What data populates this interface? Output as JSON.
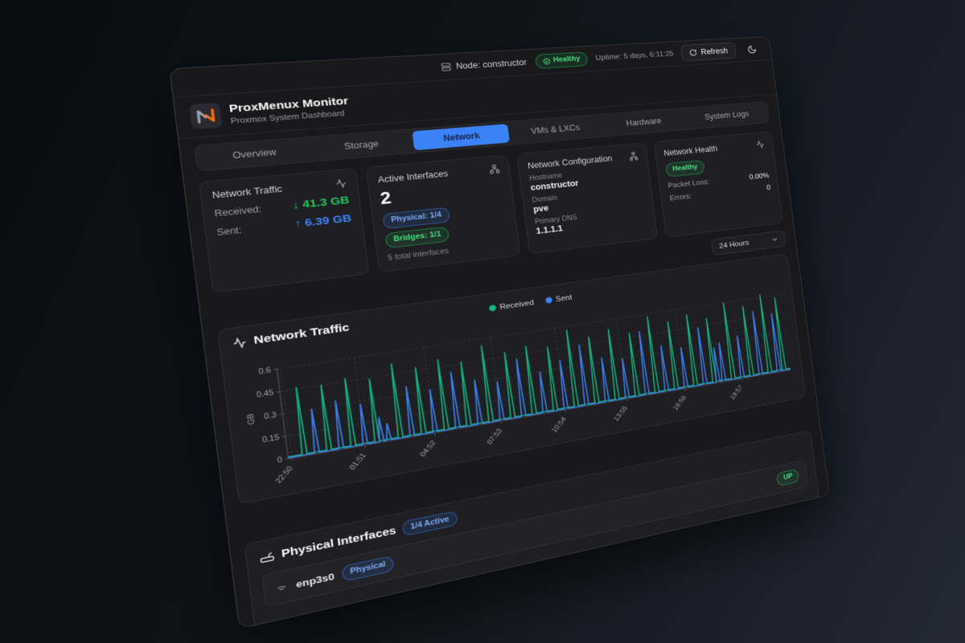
{
  "topbar": {
    "node": "Node: constructor",
    "health_status": "Healthy",
    "uptime": "Uptime: 5 days, 6:11:25",
    "refresh_label": "Refresh"
  },
  "brand": {
    "title": "ProxMenux Monitor",
    "subtitle": "Proxmox System Dashboard"
  },
  "tabs": [
    {
      "label": "Overview",
      "active": false
    },
    {
      "label": "Storage",
      "active": false
    },
    {
      "label": "Network",
      "active": true
    },
    {
      "label": "VMs & LXCs",
      "active": false
    },
    {
      "label": "Hardware",
      "active": false
    },
    {
      "label": "System Logs",
      "active": false
    }
  ],
  "cards": {
    "traffic": {
      "title": "Network Traffic",
      "rows": [
        {
          "label": "Received:",
          "value": "↓ 41.3 GB",
          "color": "#22c55e"
        },
        {
          "label": "Sent:",
          "value": "↑ 6.39 GB",
          "color": "#3b82f6"
        }
      ]
    },
    "interfaces": {
      "title": "Active Interfaces",
      "count": "2",
      "badges": [
        {
          "label": "Physical: 1/4",
          "variant": "blue"
        },
        {
          "label": "Bridges: 1/1",
          "variant": "green"
        }
      ],
      "note": "5 total interfaces"
    },
    "config": {
      "title": "Network Configuration",
      "fields": [
        {
          "label": "Hostname",
          "value": "constructor"
        },
        {
          "label": "Domain",
          "value": "pve"
        },
        {
          "label": "Primary DNS",
          "value": "1.1.1.1"
        }
      ]
    },
    "health": {
      "title": "Network Health",
      "status": "Healthy",
      "rows": [
        {
          "label": "Packet Loss:",
          "value": "0.00%"
        },
        {
          "label": "Errors:",
          "value": "0"
        }
      ]
    }
  },
  "time_range": {
    "selected": "24 Hours"
  },
  "chart_data": {
    "type": "line",
    "title": "Network Traffic",
    "ylabel": "GB",
    "ylim": [
      0,
      0.6
    ],
    "y_ticks": [
      0,
      0.15,
      0.3,
      0.45,
      0.6
    ],
    "x_tick_labels": [
      "22:50",
      "01:51",
      "04:52",
      "07:53",
      "10:54",
      "13:55",
      "16:56",
      "19:57"
    ],
    "x_tick_pos": [
      0.006,
      0.132,
      0.258,
      0.383,
      0.509,
      0.635,
      0.761,
      0.887
    ],
    "grid": true,
    "legend_position": "top-center",
    "series": [
      {
        "name": "Received",
        "color": "#10b981",
        "baseline": 0.012,
        "spikes": [
          [
            0.028,
            0.46
          ],
          [
            0.07,
            0.45
          ],
          [
            0.112,
            0.47
          ],
          [
            0.154,
            0.44
          ],
          [
            0.196,
            0.52
          ],
          [
            0.238,
            0.47
          ],
          [
            0.28,
            0.5
          ],
          [
            0.322,
            0.46
          ],
          [
            0.364,
            0.55
          ],
          [
            0.406,
            0.48
          ],
          [
            0.448,
            0.5
          ],
          [
            0.49,
            0.47
          ],
          [
            0.532,
            0.57
          ],
          [
            0.574,
            0.5
          ],
          [
            0.616,
            0.53
          ],
          [
            0.658,
            0.48
          ],
          [
            0.7,
            0.58
          ],
          [
            0.742,
            0.52
          ],
          [
            0.784,
            0.55
          ],
          [
            0.826,
            0.5
          ],
          [
            0.868,
            0.6
          ],
          [
            0.91,
            0.55
          ],
          [
            0.952,
            0.62
          ],
          [
            0.985,
            0.58
          ]
        ]
      },
      {
        "name": "Sent",
        "color": "#3b82f6",
        "baseline": 0.006,
        "spikes": [
          [
            0.049,
            0.3
          ],
          [
            0.091,
            0.33
          ],
          [
            0.133,
            0.28
          ],
          [
            0.162,
            0.17
          ],
          [
            0.175,
            0.12
          ],
          [
            0.217,
            0.35
          ],
          [
            0.259,
            0.3
          ],
          [
            0.301,
            0.4
          ],
          [
            0.343,
            0.32
          ],
          [
            0.385,
            0.28
          ],
          [
            0.427,
            0.42
          ],
          [
            0.469,
            0.3
          ],
          [
            0.511,
            0.36
          ],
          [
            0.553,
            0.45
          ],
          [
            0.595,
            0.33
          ],
          [
            0.637,
            0.3
          ],
          [
            0.679,
            0.48
          ],
          [
            0.721,
            0.35
          ],
          [
            0.763,
            0.31
          ],
          [
            0.805,
            0.44
          ],
          [
            0.834,
            0.27
          ],
          [
            0.847,
            0.3
          ],
          [
            0.889,
            0.33
          ],
          [
            0.931,
            0.5
          ],
          [
            0.973,
            0.46
          ]
        ]
      }
    ]
  },
  "physical_section": {
    "title": "Physical Interfaces",
    "badge": "1/4 Active",
    "rows": [
      {
        "name": "enp3s0",
        "type": "Physical",
        "status": "UP"
      }
    ]
  },
  "colors": {
    "accent_blue": "#3b82f6",
    "green": "#22c55e",
    "received_line": "#10b981",
    "sent_line": "#3b82f6",
    "logo_orange": "#f97316"
  }
}
